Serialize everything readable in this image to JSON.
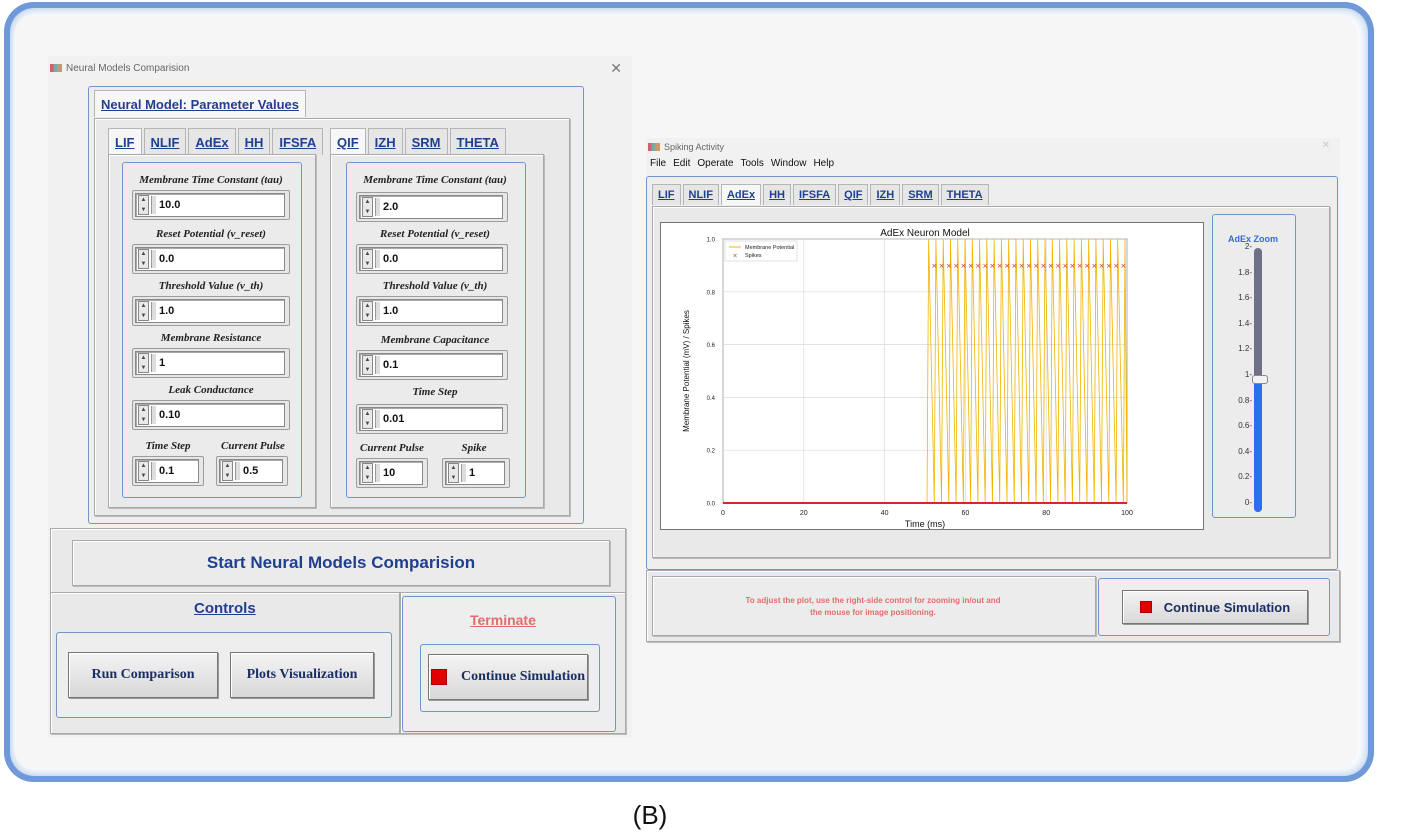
{
  "left_window": {
    "title": "Neural Models Comparision",
    "params_tab": "Neural Model: Parameter Values",
    "left_tabs": [
      "LIF",
      "NLIF",
      "AdEx",
      "HH",
      "IFSFA"
    ],
    "right_tabs": [
      "QIF",
      "IZH",
      "SRM",
      "THETA"
    ],
    "lif_params": {
      "tau_label": "Membrane Time Constant (tau)",
      "tau": "10.0",
      "reset_label": "Reset Potential (v_reset)",
      "reset": "0.0",
      "th_label": "Threshold Value (v_th)",
      "th": "1.0",
      "res_label": "Membrane Resistance",
      "res": "1",
      "leak_label": "Leak Conductance",
      "leak": "0.10",
      "step_label": "Time Step",
      "step": "0.1",
      "pulse_label": "Current Pulse",
      "pulse": "0.5"
    },
    "qif_params": {
      "tau_label": "Membrane Time Constant (tau)",
      "tau": "2.0",
      "reset_label": "Reset Potential (v_reset)",
      "reset": "0.0",
      "th_label": "Threshold Value (v_th)",
      "th": "1.0",
      "cap_label": "Membrane Capacitance",
      "cap": "0.1",
      "step_label": "Time Step",
      "step": "0.01",
      "pulse_label": "Current Pulse",
      "pulse": "10",
      "spike_label": "Spike",
      "spike": "1"
    },
    "start_label": "Start Neural Models Comparision",
    "controls_label": "Controls",
    "terminate_label": "Terminate",
    "run_btn": "Run Comparison",
    "plots_btn": "Plots Visualization",
    "continue_btn": "Continue Simulation"
  },
  "right_window": {
    "title": "Spiking Activity",
    "menu": [
      "File",
      "Edit",
      "Operate",
      "Tools",
      "Window",
      "Help"
    ],
    "tabs": [
      "LIF",
      "NLIF",
      "AdEx",
      "HH",
      "IFSFA",
      "QIF",
      "IZH",
      "SRM",
      "THETA"
    ],
    "active_tab": "AdEx",
    "zoom_label": "AdEx Zoom",
    "zoom_ticks": [
      "2-",
      "1.8-",
      "1.6-",
      "1.4-",
      "1.2-",
      "1-",
      "0.8-",
      "0.6-",
      "0.4-",
      "0.2-",
      "0-"
    ],
    "zoom_value": 1.0,
    "hint_line1": "To adjust the plot, use the right-side control for zooming in/out and",
    "hint_line2": "the mouse for image positioning.",
    "continue_btn": "Continue Simulation"
  },
  "chart_data": {
    "type": "line",
    "title": "AdEx Neuron Model",
    "xlabel": "Time (ms)",
    "ylabel": "Membrane Potential (mV) / Spikes",
    "xlim": [
      0,
      100
    ],
    "ylim": [
      0,
      1.0
    ],
    "x_ticks": [
      "0",
      "20",
      "40",
      "60",
      "80",
      "100"
    ],
    "y_ticks": [
      "0.0",
      "0.2",
      "0.4",
      "0.6",
      "0.8",
      "1.0"
    ],
    "grid": true,
    "legend_position": "top-left",
    "series": [
      {
        "name": "Membrane Potential",
        "color": "#f0b400",
        "spike_times": [
          50.5,
          52.3,
          54.1,
          55.9,
          57.7,
          59.5,
          61.3,
          63.1,
          64.9,
          66.7,
          68.5,
          70.3,
          72.1,
          73.9,
          75.7,
          77.5,
          79.3,
          81.1,
          82.9,
          84.7,
          86.5,
          88.3,
          90.1,
          91.9,
          93.7,
          95.5,
          97.3,
          99.1
        ],
        "spike_peak": 1.0,
        "final_value": 0.44
      },
      {
        "name": "Spikes",
        "color": "#d62728",
        "marker": "x",
        "x": [
          52.3,
          54.1,
          55.9,
          57.7,
          59.5,
          61.3,
          63.1,
          64.9,
          66.7,
          68.5,
          70.3,
          72.1,
          73.9,
          75.7,
          77.5,
          79.3,
          81.1,
          82.9,
          84.7,
          86.5,
          88.3,
          90.1,
          91.9,
          93.7,
          95.5,
          97.3,
          99.1
        ],
        "y_value": 0.9
      }
    ]
  },
  "caption": "(B)"
}
